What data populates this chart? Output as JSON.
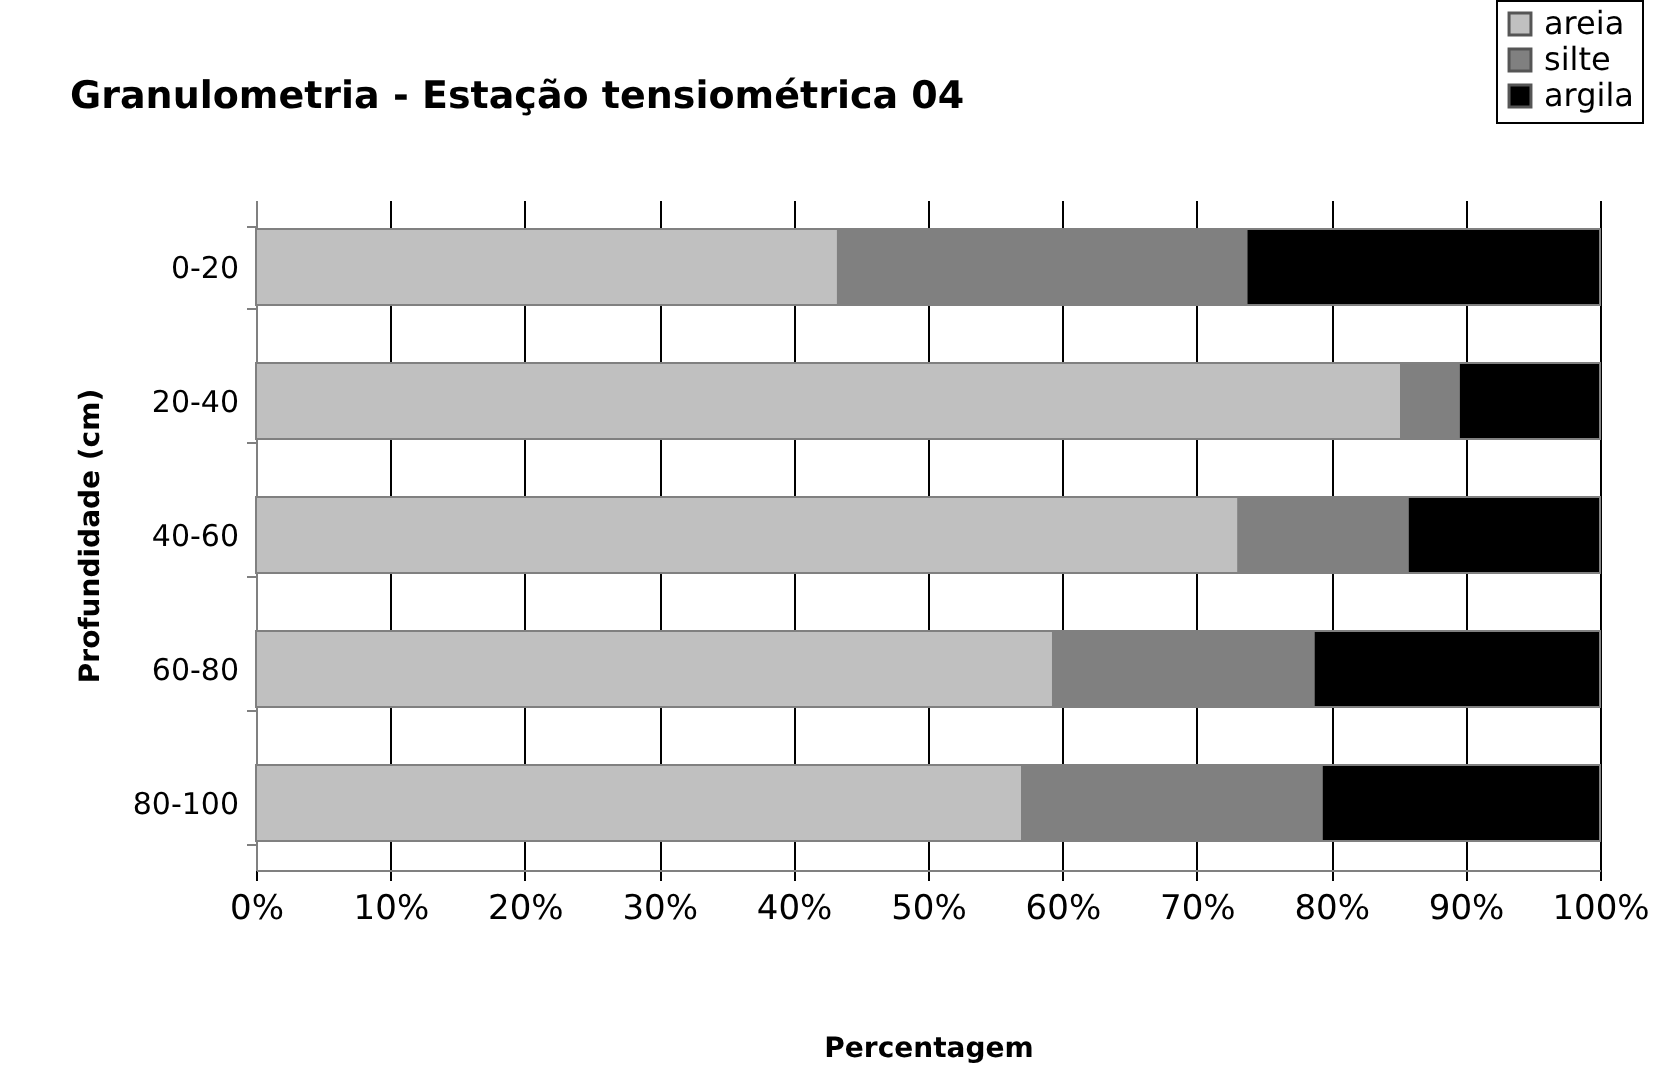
{
  "chart_data": {
    "type": "bar",
    "orientation": "horizontal",
    "stacked": true,
    "title": "Granulometria - Estação tensiométrica 04",
    "xlabel": "Percentagem",
    "ylabel": "Profundidade (cm)",
    "categories": [
      "0-20",
      "20-40",
      "40-60",
      "60-80",
      "80-100"
    ],
    "series": [
      {
        "name": "areia",
        "color": "#c0c0c0",
        "values": [
          43.3,
          85.2,
          73.1,
          59.3,
          57.0
        ]
      },
      {
        "name": "silte",
        "color": "#808080",
        "values": [
          30.4,
          4.3,
          12.6,
          19.4,
          22.3
        ]
      },
      {
        "name": "argila",
        "color": "#000000",
        "values": [
          26.3,
          10.5,
          14.3,
          21.3,
          20.7
        ]
      }
    ],
    "xlim": [
      0,
      100
    ],
    "xticks": [
      {
        "value": 0,
        "label": "0%"
      },
      {
        "value": 10,
        "label": "10%"
      },
      {
        "value": 20,
        "label": "20%"
      },
      {
        "value": 30,
        "label": "30%"
      },
      {
        "value": 40,
        "label": "40%"
      },
      {
        "value": 50,
        "label": "50%"
      },
      {
        "value": 60,
        "label": "60%"
      },
      {
        "value": 70,
        "label": "70%"
      },
      {
        "value": 80,
        "label": "80%"
      },
      {
        "value": 90,
        "label": "90%"
      },
      {
        "value": 100,
        "label": "100%"
      }
    ],
    "grid": "x",
    "legend": "top right"
  }
}
